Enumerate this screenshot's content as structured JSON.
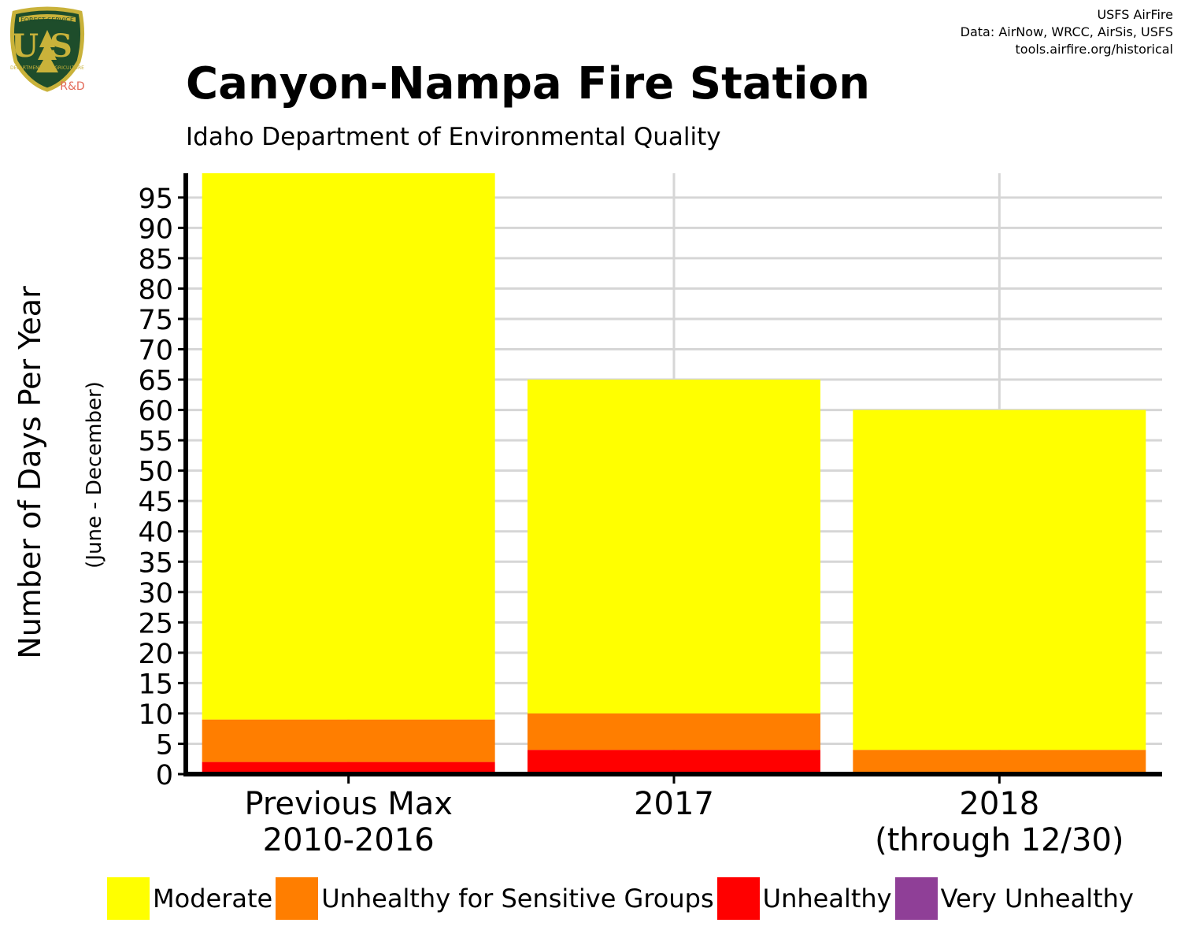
{
  "header": {
    "logo": {
      "name": "usfs-shield-logo",
      "text_top": "FOREST SERVICE",
      "text_main": "US",
      "text_bottom": "DEPARTMENT OF AGRICULTURE",
      "badge": "R&D"
    },
    "credits": [
      "USFS AirFire",
      "Data: AirNow, WRCC, AirSis, USFS",
      "tools.airfire.org/historical"
    ]
  },
  "colors": {
    "Moderate": "#FFFF00",
    "Unhealthy for Sensitive Groups": "#FF7E00",
    "Unhealthy": "#FF0000",
    "Very Unhealthy": "#8F3F97",
    "grid": "#d6d6d6",
    "axis": "#000000"
  },
  "chart_data": {
    "type": "bar",
    "stacked": true,
    "title": "Canyon-Nampa Fire Station",
    "subtitle": "Idaho Department of Environmental Quality",
    "ylabel": "Number of Days Per Year",
    "ylabel_sub": "(June - December)",
    "xlabel": "",
    "categories": [
      [
        "Previous Max",
        "2010-2016"
      ],
      [
        "2017"
      ],
      [
        "2018",
        "(through 12/30)"
      ]
    ],
    "series": [
      {
        "name": "Unhealthy",
        "values": [
          2,
          4,
          0
        ]
      },
      {
        "name": "Unhealthy for Sensitive Groups",
        "values": [
          7,
          6,
          4
        ]
      },
      {
        "name": "Moderate",
        "values": [
          90,
          55,
          56
        ]
      },
      {
        "name": "Very Unhealthy",
        "values": [
          0,
          0,
          0
        ]
      }
    ],
    "ylim": [
      0,
      99
    ],
    "yticks": [
      0,
      5,
      10,
      15,
      20,
      25,
      30,
      35,
      40,
      45,
      50,
      55,
      60,
      65,
      70,
      75,
      80,
      85,
      90,
      95
    ],
    "grid": true,
    "legend_position": "bottom",
    "legend": [
      "Moderate",
      "Unhealthy for Sensitive Groups",
      "Unhealthy",
      "Very Unhealthy"
    ]
  }
}
